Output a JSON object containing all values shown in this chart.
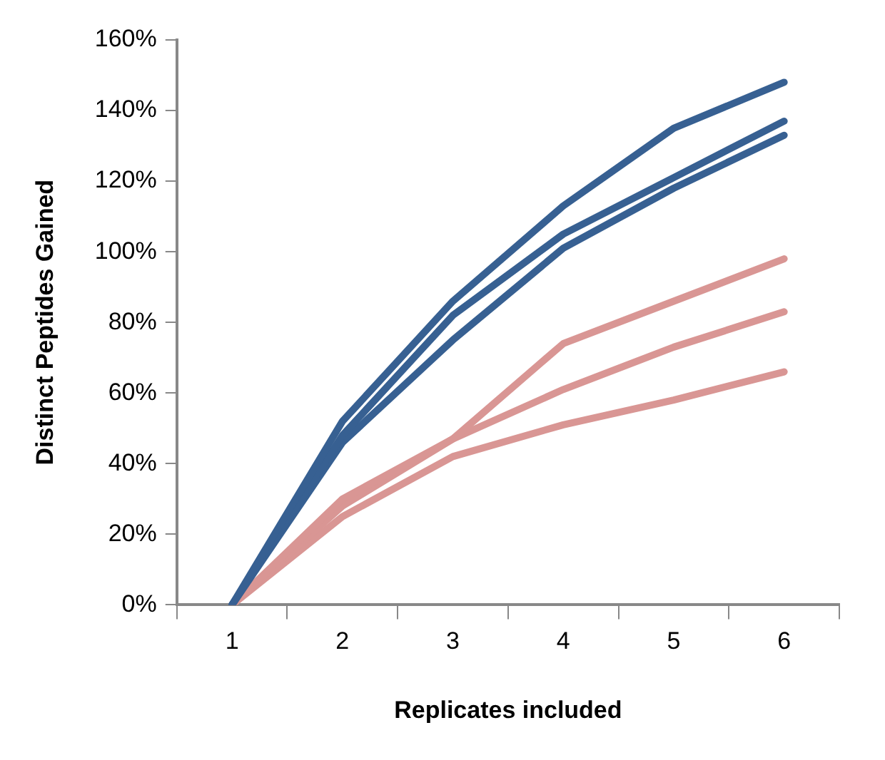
{
  "chart_data": {
    "type": "line",
    "xlabel": "Replicates included",
    "ylabel": "Distinct Peptides Gained",
    "categories": [
      "1",
      "2",
      "3",
      "4",
      "5",
      "6"
    ],
    "series": [
      {
        "color": "#376092",
        "values": [
          0,
          52,
          86,
          113,
          135,
          148
        ]
      },
      {
        "color": "#376092",
        "values": [
          0,
          48,
          82,
          105,
          121,
          137
        ]
      },
      {
        "color": "#376092",
        "values": [
          0,
          46,
          75,
          101,
          118,
          133
        ]
      },
      {
        "color": "#d99694",
        "values": [
          0,
          30,
          47,
          74,
          86,
          98
        ]
      },
      {
        "color": "#d99694",
        "values": [
          0,
          28,
          47,
          61,
          73,
          83
        ]
      },
      {
        "color": "#d99694",
        "values": [
          0,
          25,
          42,
          51,
          58,
          66
        ]
      }
    ],
    "ylim": [
      0,
      160
    ],
    "yticks": [
      {
        "value": 0,
        "label": "0%"
      },
      {
        "value": 20,
        "label": "20%"
      },
      {
        "value": 40,
        "label": "40%"
      },
      {
        "value": 60,
        "label": "60%"
      },
      {
        "value": 80,
        "label": "80%"
      },
      {
        "value": 100,
        "label": "100%"
      },
      {
        "value": 120,
        "label": "120%"
      },
      {
        "value": 140,
        "label": "140%"
      },
      {
        "value": 160,
        "label": "160%"
      }
    ],
    "grid": false,
    "legend": false,
    "marker": "none",
    "line_style": "solid"
  }
}
